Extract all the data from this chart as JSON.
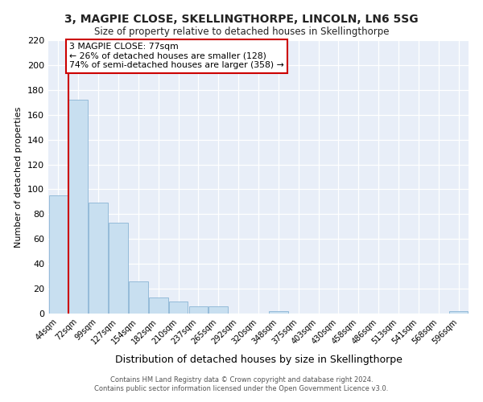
{
  "title": "3, MAGPIE CLOSE, SKELLINGTHORPE, LINCOLN, LN6 5SG",
  "subtitle": "Size of property relative to detached houses in Skellingthorpe",
  "xlabel": "Distribution of detached houses by size in Skellingthorpe",
  "ylabel": "Number of detached properties",
  "bar_labels": [
    "44sqm",
    "72sqm",
    "99sqm",
    "127sqm",
    "154sqm",
    "182sqm",
    "210sqm",
    "237sqm",
    "265sqm",
    "292sqm",
    "320sqm",
    "348sqm",
    "375sqm",
    "403sqm",
    "430sqm",
    "458sqm",
    "486sqm",
    "513sqm",
    "541sqm",
    "568sqm",
    "596sqm"
  ],
  "bar_values": [
    95,
    172,
    89,
    73,
    26,
    13,
    10,
    6,
    6,
    0,
    0,
    2,
    0,
    0,
    0,
    0,
    0,
    0,
    0,
    0,
    2
  ],
  "bar_color": "#c8dff0",
  "bar_edge_color": "#8ab4d4",
  "marker_color": "#cc0000",
  "ylim": [
    0,
    220
  ],
  "yticks": [
    0,
    20,
    40,
    60,
    80,
    100,
    120,
    140,
    160,
    180,
    200,
    220
  ],
  "annotation_title": "3 MAGPIE CLOSE: 77sqm",
  "annotation_line1": "← 26% of detached houses are smaller (128)",
  "annotation_line2": "74% of semi-detached houses are larger (358) →",
  "footer_line1": "Contains HM Land Registry data © Crown copyright and database right 2024.",
  "footer_line2": "Contains public sector information licensed under the Open Government Licence v3.0.",
  "bg_color": "#e8eef8"
}
